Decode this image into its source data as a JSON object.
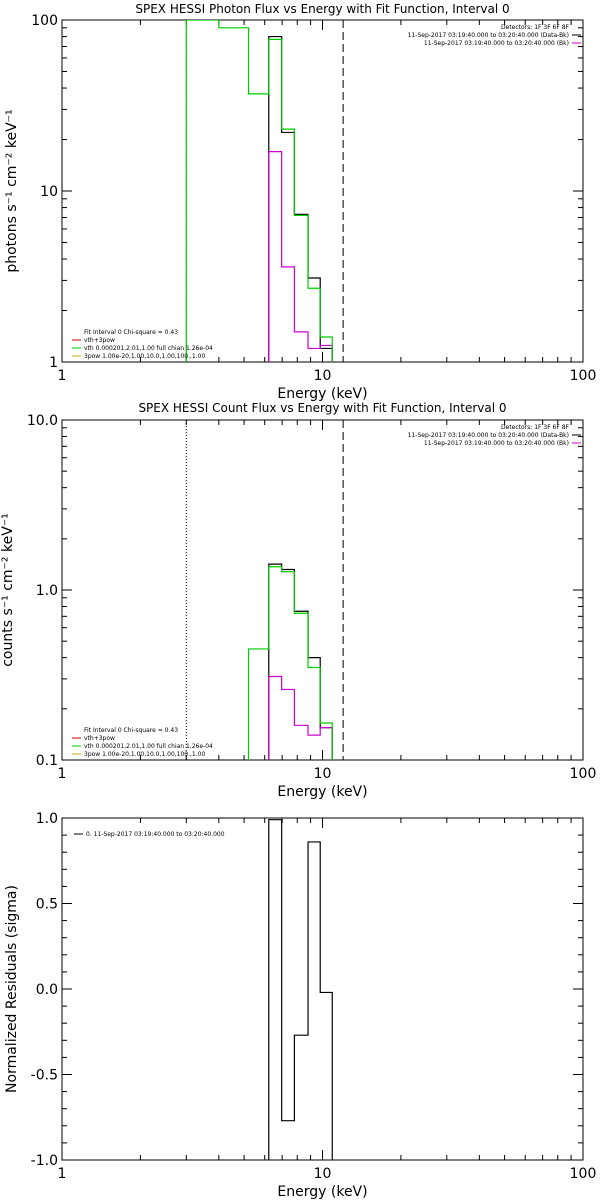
{
  "chart_data": [
    {
      "type": "line",
      "title": "SPEX HESSI Photon Flux vs Energy with Fit Function, Interval 0",
      "xlabel": "Energy (keV)",
      "ylabel": "photons s⁻¹ cm⁻² keV⁻¹",
      "xscale": "log",
      "yscale": "log",
      "xlim": [
        1,
        100
      ],
      "ylim": [
        1,
        100
      ],
      "xticks": [
        {
          "value": 1,
          "label": "1"
        },
        {
          "value": 10,
          "label": "10"
        },
        {
          "value": 100,
          "label": "100"
        }
      ],
      "yticks": [
        {
          "value": 1,
          "label": "1"
        },
        {
          "value": 10,
          "label": "10"
        },
        {
          "value": 100,
          "label": "100"
        }
      ],
      "vlines": [
        {
          "x": 3.0,
          "style": "dotted",
          "color": "#00aa00"
        },
        {
          "x": 12.0,
          "style": "dashed",
          "color": "#000000"
        }
      ],
      "legend_topright": {
        "lines": [
          "Detectors: 1F 3F 6F 8F",
          "11-Sep-2017 03:19:40.000 to 03:20:40.000 (Data-Bk)",
          "11-Sep-2017 03:19:40.000 to 03:20:40.000 (Bk)"
        ],
        "colors": [
          "",
          "#000000",
          "#cc00cc"
        ]
      },
      "legend_bottomleft": {
        "lines": [
          "Fit Interval 0   Chi-square = 0.43",
          "vth+3pow",
          "vth 0.000201,2.01,1.00  full chian 1.26e-04",
          "3pow 1.00e-20,1.00,10.0,1.00,100.,1.00"
        ],
        "colors": [
          "",
          "#cc0000",
          "#00cc00",
          "#ccaa00"
        ]
      },
      "series": [
        {
          "color": "#000000",
          "edges": [
            6.22,
            6.97,
            7.8,
            8.8,
            9.8,
            10.9
          ],
          "values": [
            80,
            22,
            7.3,
            3.1,
            1.2
          ]
        },
        {
          "color": "#cc00cc",
          "edges": [
            6.22,
            6.97,
            7.8,
            8.8,
            9.8,
            10.9
          ],
          "values": [
            17,
            3.6,
            1.5,
            1.2,
            1.25
          ]
        },
        {
          "color": "#00cc00",
          "edges": [
            3.0,
            4.0,
            5.2,
            6.22,
            6.97,
            7.8,
            8.8,
            9.8,
            10.9
          ],
          "values": [
            100,
            90,
            37,
            77,
            23,
            7.2,
            2.7,
            1.4
          ],
          "vertical_left": true
        }
      ]
    },
    {
      "type": "line",
      "title": "SPEX HESSI Count Flux vs Energy with Fit Function, Interval 0",
      "xlabel": "Energy (keV)",
      "ylabel": "counts s⁻¹ cm⁻² keV⁻¹",
      "xscale": "log",
      "yscale": "log",
      "xlim": [
        1,
        100
      ],
      "ylim": [
        0.1,
        10
      ],
      "xticks": [
        {
          "value": 1,
          "label": "1"
        },
        {
          "value": 10,
          "label": "10"
        },
        {
          "value": 100,
          "label": "100"
        }
      ],
      "yticks": [
        {
          "value": 0.1,
          "label": "0.1"
        },
        {
          "value": 1,
          "label": "1.0"
        },
        {
          "value": 10,
          "label": "10.0"
        }
      ],
      "vlines": [
        {
          "x": 3.0,
          "style": "dotted",
          "color": "#000000"
        },
        {
          "x": 12.0,
          "style": "dashed",
          "color": "#000000"
        }
      ],
      "legend_topright": {
        "lines": [
          "Detectors: 1F 3F 6F 8F",
          "11-Sep-2017 03:19:40.000 to 03:20:40.000 (Data-Bk)",
          "11-Sep-2017 03:19:40.000 to 03:20:40.000 (Bk)"
        ],
        "colors": [
          "",
          "#000000",
          "#cc00cc"
        ]
      },
      "legend_bottomleft": {
        "lines": [
          "Fit Interval 0   Chi-square = 0.43",
          "vth+3pow",
          "vth 0.000201,2.01,1.00  full chian 1.26e-04",
          "3pow 1.00e-20,1.00,10.0,1.00,100.,1.00"
        ],
        "colors": [
          "",
          "#cc0000",
          "#00cc00",
          "#ccaa00"
        ]
      },
      "series": [
        {
          "color": "#000000",
          "edges": [
            6.22,
            6.97,
            7.8,
            8.8,
            9.8,
            10.9
          ],
          "values": [
            1.42,
            1.32,
            0.75,
            0.4,
            0.155
          ]
        },
        {
          "color": "#cc00cc",
          "edges": [
            6.22,
            6.97,
            7.8,
            8.8,
            9.8,
            10.9
          ],
          "values": [
            0.31,
            0.26,
            0.16,
            0.14,
            0.155
          ]
        },
        {
          "color": "#00cc00",
          "edges": [
            5.2,
            6.22,
            6.97,
            7.8,
            8.8,
            9.8,
            10.9
          ],
          "values": [
            0.45,
            1.37,
            1.28,
            0.73,
            0.35,
            0.165
          ]
        }
      ]
    },
    {
      "type": "line",
      "title": "",
      "xlabel": "Energy (keV)",
      "ylabel": "Normalized Residuals (sigma)",
      "xscale": "log",
      "yscale": "linear",
      "xlim": [
        1,
        100
      ],
      "ylim": [
        -1,
        1
      ],
      "xticks": [
        {
          "value": 1,
          "label": "1"
        },
        {
          "value": 10,
          "label": "10"
        },
        {
          "value": 100,
          "label": "100"
        }
      ],
      "yticks": [
        {
          "value": -1,
          "label": "-1.0"
        },
        {
          "value": -0.5,
          "label": "-0.5"
        },
        {
          "value": 0,
          "label": "0.0"
        },
        {
          "value": 0.5,
          "label": "0.5"
        },
        {
          "value": 1,
          "label": "1.0"
        }
      ],
      "vlines": [],
      "legend_topleft": {
        "lines": [
          "0. 11-Sep-2017 03:19:40.000 to 03:20:40.000"
        ],
        "colors": [
          "#000000"
        ]
      },
      "series": [
        {
          "color": "#000000",
          "edges": [
            6.22,
            6.97,
            7.8,
            8.8,
            9.8,
            10.9
          ],
          "values": [
            0.99,
            -0.77,
            -0.27,
            0.86,
            -0.02
          ]
        }
      ]
    }
  ]
}
